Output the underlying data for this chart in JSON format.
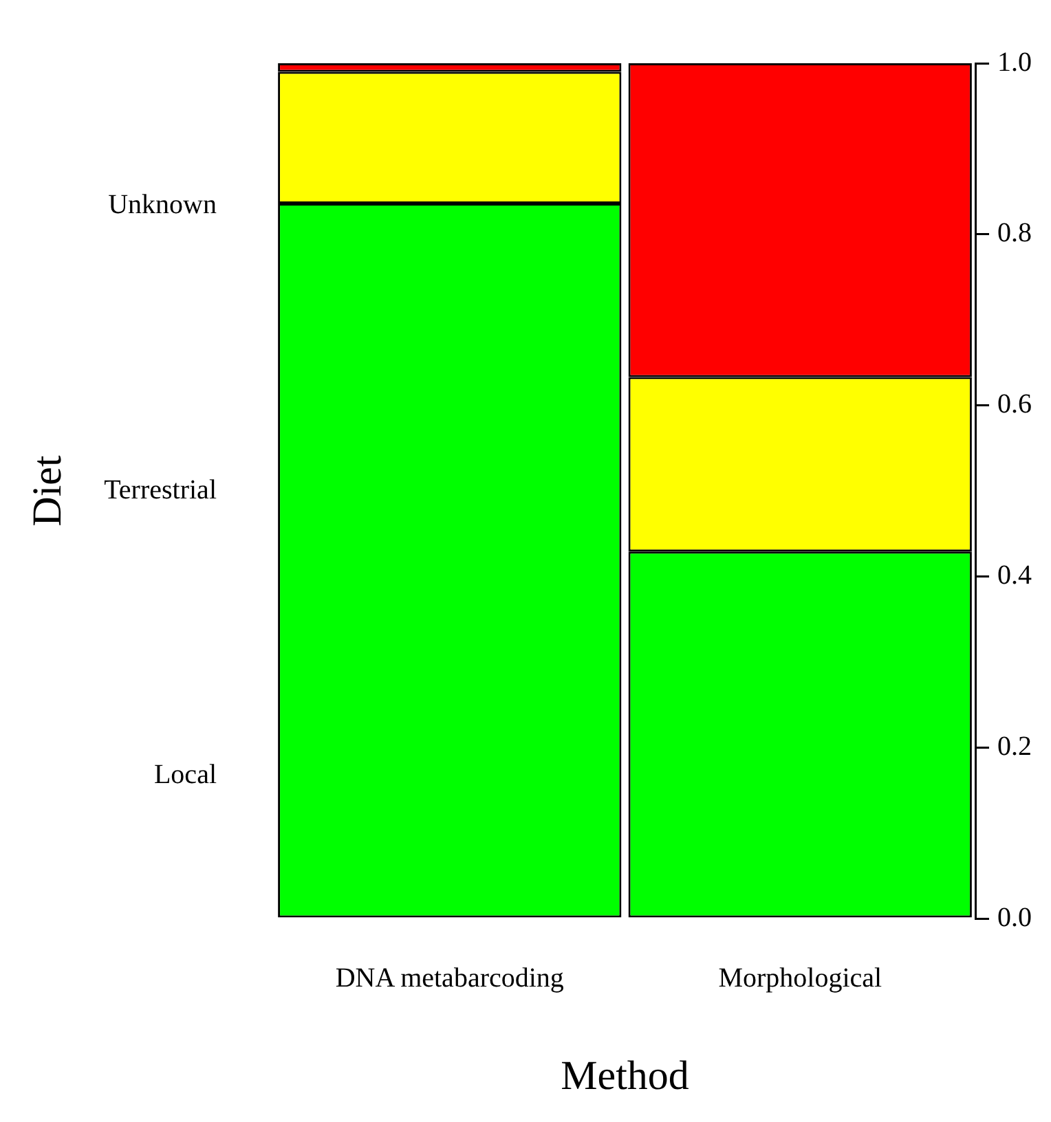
{
  "chart_data": {
    "type": "bar",
    "stacked": true,
    "xlabel": "Method",
    "ylabel": "Diet",
    "annotations": [
      "Unknown",
      "Terrestrial",
      "Local"
    ],
    "categories": [
      "DNA metabarcoding",
      "Morphological"
    ],
    "series": [
      {
        "color": "#00ff00",
        "values": [
          0.836,
          0.429
        ]
      },
      {
        "color": "#ffff00",
        "values": [
          0.154,
          0.204
        ]
      },
      {
        "color": "#ff0000",
        "values": [
          0.01,
          0.367
        ]
      }
    ],
    "ylim": [
      0,
      1
    ],
    "yticks": [
      {
        "value": 0,
        "label": "0.0"
      },
      {
        "value": 0.2,
        "label": "0.2"
      },
      {
        "value": 0.4,
        "label": "0.4"
      },
      {
        "value": 0.6,
        "label": "0.6"
      },
      {
        "value": 0.8,
        "label": "0.8"
      },
      {
        "value": 1,
        "label": "1.0"
      }
    ],
    "grid": false,
    "legend": false
  }
}
